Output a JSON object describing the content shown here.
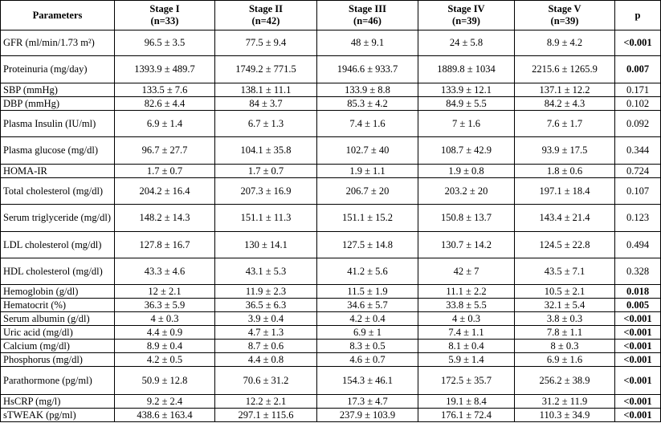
{
  "table": {
    "header": {
      "parameters": "Parameters",
      "stages": [
        {
          "name": "Stage I",
          "n": "(n=33)"
        },
        {
          "name": "Stage II",
          "n": "(n=42)"
        },
        {
          "name": "Stage III",
          "n": "(n=46)"
        },
        {
          "name": "Stage IV",
          "n": "(n=39)"
        },
        {
          "name": "Stage V",
          "n": "(n=39)"
        }
      ],
      "p": "p"
    },
    "rows": [
      {
        "label": "GFR (ml/min/1.73 m²)",
        "values": [
          "96.5 ± 3.5",
          "77.5 ± 9.4",
          "48 ± 9.1",
          "24 ± 5.8",
          "8.9 ± 4.2"
        ],
        "p": "<0.001",
        "bold": true
      },
      {
        "label": "Proteinuria (mg/day)",
        "values": [
          "1393.9 ± 489.7",
          "1749.2 ± 771.5",
          "1946.6 ± 933.7",
          "1889.8 ± 1034",
          "2215.6 ± 1265.9"
        ],
        "p": "0.007",
        "bold": true
      },
      {
        "label": "SBP (mmHg)",
        "values": [
          "133.5 ± 7.6",
          "138.1 ± 11.1",
          "133.9 ± 8.8",
          "133.9 ± 12.1",
          "137.1 ± 12.2"
        ],
        "p": "0.171",
        "bold": false
      },
      {
        "label": "DBP (mmHg)",
        "values": [
          "82.6 ± 4.4",
          "84 ± 3.7",
          "85.3 ± 4.2",
          "84.9 ± 5.5",
          "84.2 ± 4.3"
        ],
        "p": "0.102",
        "bold": false
      },
      {
        "label": "Plasma Insulin (IU/ml)",
        "values": [
          "6.9 ± 1.4",
          "6.7 ± 1.3",
          "7.4 ± 1.6",
          "7 ± 1.6",
          "7.6 ± 1.7"
        ],
        "p": "0.092",
        "bold": false
      },
      {
        "label": "Plasma glucose (mg/dl)",
        "values": [
          "96.7 ± 27.7",
          "104.1 ± 35.8",
          "102.7 ± 40",
          "108.7 ± 42.9",
          "93.9 ± 17.5"
        ],
        "p": "0.344",
        "bold": false
      },
      {
        "label": "HOMA-IR",
        "values": [
          "1.7 ± 0.7",
          "1.7 ± 0.7",
          "1.9 ± 1.1",
          "1.9 ± 0.8",
          "1.8 ± 0.6"
        ],
        "p": "0.724",
        "bold": false
      },
      {
        "label": "Total cholesterol (mg/dl)",
        "values": [
          "204.2 ± 16.4",
          "207.3 ± 16.9",
          "206.7 ± 20",
          "203.2 ± 20",
          "197.1 ± 18.4"
        ],
        "p": "0.107",
        "bold": false
      },
      {
        "label": "Serum triglyceride (mg/dl)",
        "values": [
          "148.2 ± 14.3",
          "151.1 ± 11.3",
          "151.1 ± 15.2",
          "150.8 ± 13.7",
          "143.4 ± 21.4"
        ],
        "p": "0.123",
        "bold": false
      },
      {
        "label": "LDL cholesterol (mg/dl)",
        "values": [
          "127.8 ± 16.7",
          "130 ± 14.1",
          "127.5 ± 14.8",
          "130.7 ± 14.2",
          "124.5 ± 22.8"
        ],
        "p": "0.494",
        "bold": false
      },
      {
        "label": "HDL cholesterol (mg/dl)",
        "values": [
          "43.3 ± 4.6",
          "43.1 ± 5.3",
          "41.2 ± 5.6",
          "42 ± 7",
          "43.5 ± 7.1"
        ],
        "p": "0.328",
        "bold": false
      },
      {
        "label": "Hemoglobin (g/dl)",
        "values": [
          "12 ± 2.1",
          "11.9 ± 2.3",
          "11.5 ± 1.9",
          "11.1 ± 2.2",
          "10.5 ± 2.1"
        ],
        "p": "0.018",
        "bold": true
      },
      {
        "label": "Hematocrit (%)",
        "values": [
          "36.3 ± 5.9",
          "36.5 ± 6.3",
          "34.6 ± 5.7",
          "33.8 ± 5.5",
          "32.1 ± 5.4"
        ],
        "p": "0.005",
        "bold": true
      },
      {
        "label": "Serum albumin (g/dl)",
        "values": [
          "4 ± 0.3",
          "3.9 ± 0.4",
          "4.2 ± 0.4",
          "4 ± 0.3",
          "3.8 ± 0.3"
        ],
        "p": "<0.001",
        "bold": true
      },
      {
        "label": "Uric acid (mg/dl)",
        "values": [
          "4.4 ± 0.9",
          "4.7 ± 1.3",
          "6.9 ± 1",
          "7.4 ± 1.1",
          "7.8 ± 1.1"
        ],
        "p": "<0.001",
        "bold": true
      },
      {
        "label": "Calcium (mg/dl)",
        "values": [
          "8.9 ± 0.4",
          "8.7 ± 0.6",
          "8.3 ± 0.5",
          "8.1 ± 0.4",
          "8 ± 0.3"
        ],
        "p": "<0.001",
        "bold": true
      },
      {
        "label": "Phosphorus (mg/dl)",
        "values": [
          "4.2 ± 0.5",
          "4.4 ± 0.8",
          "4.6 ± 0.7",
          "5.9 ± 1.4",
          "6.9 ± 1.6"
        ],
        "p": "<0.001",
        "bold": true
      },
      {
        "label": "Parathormone (pg/ml)",
        "values": [
          "50.9 ± 12.8",
          "70.6 ± 31.2",
          "154.3 ± 46.1",
          "172.5 ± 35.7",
          "256.2 ± 38.9"
        ],
        "p": "<0.001",
        "bold": true
      },
      {
        "label": "HsCRP (mg/l)",
        "values": [
          "9.2 ± 2.4",
          "12.2 ± 2.1",
          "17.3 ± 4.7",
          "19.1 ± 8.4",
          "31.2 ± 11.9"
        ],
        "p": "<0.001",
        "bold": true
      },
      {
        "label": "sTWEAK (pg/ml)",
        "values": [
          "438.6 ± 163.4",
          "297.1 ± 115.6",
          "237.9 ± 103.9",
          "176.1 ± 72.4",
          "110.3 ± 34.9"
        ],
        "p": "<0.001",
        "bold": true
      }
    ]
  }
}
